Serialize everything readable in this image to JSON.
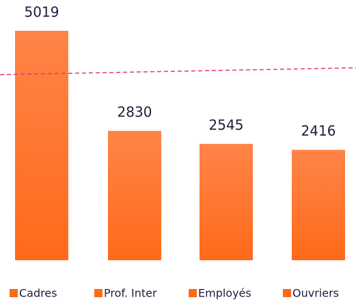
{
  "chart_data": {
    "type": "bar",
    "categories": [
      "Cadres",
      "Prof. Inter",
      "Employés",
      "Ouvriers"
    ],
    "values": [
      5019,
      2830,
      2545,
      2416
    ],
    "color": "#ff6a1a",
    "ylim": [
      0,
      5500
    ],
    "reference_line": {
      "values": [
        4060,
        4210
      ],
      "color": "#e8337a"
    },
    "legend": "bottom"
  }
}
